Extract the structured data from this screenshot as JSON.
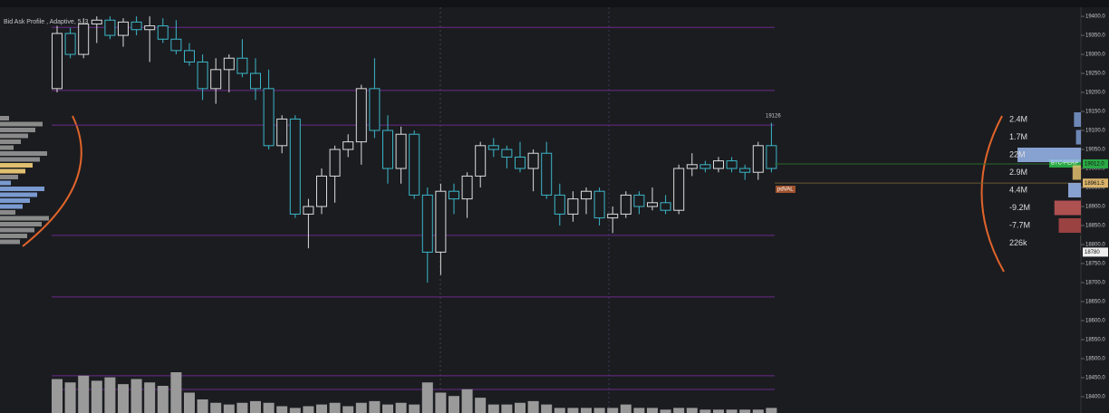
{
  "chart_data": {
    "type": "candlestick",
    "title": "Bid Ask Profile , Adaptive, 5, 3",
    "ylim": [
      18357,
      19443
    ],
    "yticks": [
      {
        "value": 19400,
        "label": "19400.0"
      },
      {
        "value": 19350,
        "label": "19350.0"
      },
      {
        "value": 19300,
        "label": "19300.0"
      },
      {
        "value": 19250,
        "label": "19250.0"
      },
      {
        "value": 19200,
        "label": "19200.0"
      },
      {
        "value": 19150,
        "label": "19150.0"
      },
      {
        "value": 19100,
        "label": "19100.0"
      },
      {
        "value": 19050,
        "label": "19050.0"
      },
      {
        "value": 19000,
        "label": "19000.0"
      },
      {
        "value": 18950,
        "label": "18950.0"
      },
      {
        "value": 18900,
        "label": "18900.0"
      },
      {
        "value": 18850,
        "label": "18850.0"
      },
      {
        "value": 18800,
        "label": "18800.0"
      },
      {
        "value": 18750,
        "label": "18750.0"
      },
      {
        "value": 18700,
        "label": "18700.0"
      },
      {
        "value": 18650,
        "label": "18650.0"
      },
      {
        "value": 18600,
        "label": "18600.0"
      },
      {
        "value": 18550,
        "label": "18550.0"
      },
      {
        "value": 18500,
        "label": "18500.0"
      },
      {
        "value": 18450,
        "label": "18450.0"
      },
      {
        "value": 18400,
        "label": "18400.0"
      }
    ],
    "open": [
      19210,
      19355,
      19300,
      19380,
      19390,
      19350,
      19385,
      19365,
      19375,
      19340,
      19310,
      19280,
      19210,
      19260,
      19290,
      19250,
      19210,
      19060,
      19130,
      18880,
      18900,
      18980,
      19050,
      19070,
      19210,
      19100,
      19000,
      19090,
      18930,
      18780,
      18940,
      18920,
      18980,
      19060,
      19050,
      19030,
      19000,
      19040,
      18930,
      18880,
      18920,
      18940,
      18870,
      18880,
      18930,
      18900,
      18910,
      18890,
      19000,
      19010,
      19000,
      19020,
      19000,
      18990,
      19060
    ],
    "high": [
      19375,
      19370,
      19395,
      19400,
      19400,
      19395,
      19400,
      19400,
      19395,
      19390,
      19330,
      19300,
      19290,
      19300,
      19340,
      19290,
      19260,
      19140,
      19140,
      18920,
      19000,
      19060,
      19090,
      19220,
      19290,
      19140,
      19110,
      19100,
      18950,
      18960,
      18960,
      18990,
      19070,
      19080,
      19060,
      19070,
      19050,
      19070,
      18960,
      18940,
      18950,
      18950,
      18900,
      18940,
      18940,
      18950,
      18930,
      19010,
      19040,
      19020,
      19030,
      19030,
      19010,
      19070,
      19120
    ],
    "low": [
      19200,
      19290,
      19290,
      19330,
      19340,
      19320,
      19350,
      19280,
      19330,
      19300,
      19270,
      19180,
      19170,
      19200,
      19240,
      19180,
      19050,
      19040,
      18870,
      18790,
      18880,
      18910,
      19030,
      19010,
      19080,
      18960,
      18960,
      18920,
      18700,
      18720,
      18880,
      18870,
      18950,
      19030,
      19000,
      18990,
      18940,
      18920,
      18850,
      18860,
      18880,
      18850,
      18830,
      18870,
      18880,
      18890,
      18880,
      18880,
      18980,
      18990,
      18990,
      18990,
      18970,
      18970,
      18990
    ],
    "close": [
      19355,
      19300,
      19380,
      19390,
      19350,
      19385,
      19365,
      19375,
      19340,
      19310,
      19280,
      19210,
      19260,
      19290,
      19250,
      19210,
      19060,
      19130,
      18880,
      18900,
      18980,
      19050,
      19070,
      19210,
      19100,
      19000,
      19090,
      18930,
      18780,
      18940,
      18920,
      18980,
      19060,
      19050,
      19030,
      19000,
      19040,
      18930,
      18880,
      18920,
      18940,
      18870,
      18880,
      18930,
      18900,
      18910,
      18890,
      19000,
      19010,
      19000,
      19020,
      19000,
      18990,
      19060,
      19000
    ],
    "volume": [
      20,
      18,
      22,
      19,
      21,
      17,
      20,
      18,
      16,
      24,
      12,
      8,
      6,
      5,
      6,
      7,
      6,
      4,
      3,
      4,
      5,
      6,
      4,
      6,
      7,
      5,
      6,
      5,
      18,
      12,
      10,
      14,
      9,
      5,
      5,
      6,
      7,
      5,
      3,
      3,
      3,
      3,
      3,
      5,
      3,
      3,
      2,
      3,
      3,
      2,
      2,
      2,
      2,
      2,
      3
    ],
    "levels": [
      19371,
      19205,
      19114,
      18824,
      18662,
      18455,
      18419
    ],
    "price_tags": [
      {
        "text": "BTC-PERP"
      },
      {
        "value": 19012,
        "label": "19012.0"
      },
      {
        "value": 18961.5,
        "label": "18961.5"
      },
      {
        "value": 18780,
        "label": "18780"
      }
    ],
    "annotations": [
      "19126",
      "pdVAL"
    ],
    "profile": {
      "values": [
        2.4,
        1.7,
        22,
        2.9,
        4.4,
        -9.2,
        -7.7,
        0.226
      ],
      "value_labels": [
        "2.4M",
        "1.7M",
        "22M",
        "2.9M",
        "4.4M",
        "-9.2M",
        "-7.7M",
        "226k"
      ]
    }
  }
}
